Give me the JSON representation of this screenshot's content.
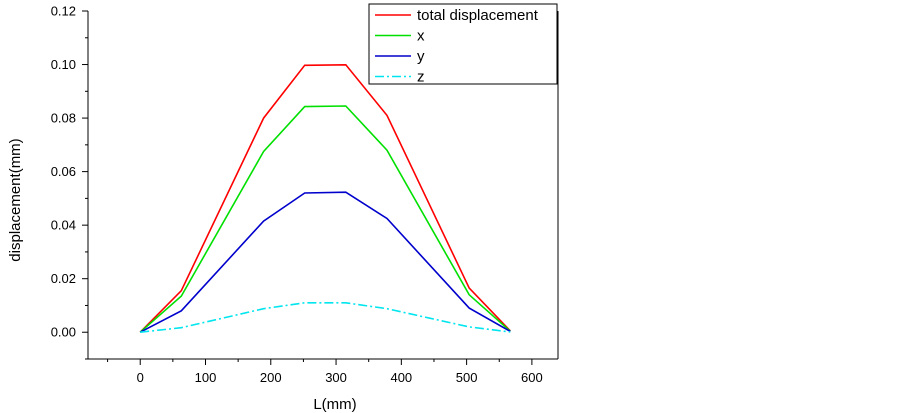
{
  "chart_data": {
    "type": "line",
    "title": "",
    "xlabel": "L(mm)",
    "ylabel": "displacement(mm)",
    "xlim": [
      -80,
      640
    ],
    "ylim": [
      -0.01,
      0.12
    ],
    "xticks": [
      0,
      100,
      200,
      300,
      400,
      500,
      600
    ],
    "xtick_labels": [
      "0",
      "100",
      "200",
      "300",
      "400",
      "500",
      "600"
    ],
    "yticks": [
      0.0,
      0.02,
      0.04,
      0.06,
      0.08,
      0.1,
      0.12
    ],
    "ytick_labels": [
      "0.00",
      "0.02",
      "0.04",
      "0.06",
      "0.08",
      "0.10",
      "0.12"
    ],
    "grid": false,
    "legend_position": "top-right",
    "x": [
      0,
      63,
      189,
      252,
      315,
      378,
      504,
      567
    ],
    "series": [
      {
        "name": "total displacement",
        "color": "#ff0000",
        "dash": "solid",
        "values": [
          0.0,
          0.0155,
          0.08,
          0.0997,
          0.0999,
          0.081,
          0.0165,
          0.0005
        ]
      },
      {
        "name": "x",
        "color": "#00e000",
        "dash": "solid",
        "values": [
          0.0,
          0.0135,
          0.0675,
          0.0843,
          0.0845,
          0.068,
          0.014,
          0.0004
        ]
      },
      {
        "name": "y",
        "color": "#0000cc",
        "dash": "solid",
        "values": [
          0.0,
          0.008,
          0.0415,
          0.052,
          0.0523,
          0.0425,
          0.009,
          0.0003
        ]
      },
      {
        "name": "z",
        "color": "#00e5ee",
        "dash": "dashdot",
        "values": [
          0.0,
          0.0017,
          0.0088,
          0.011,
          0.011,
          0.0088,
          0.002,
          0.0001
        ]
      }
    ]
  }
}
